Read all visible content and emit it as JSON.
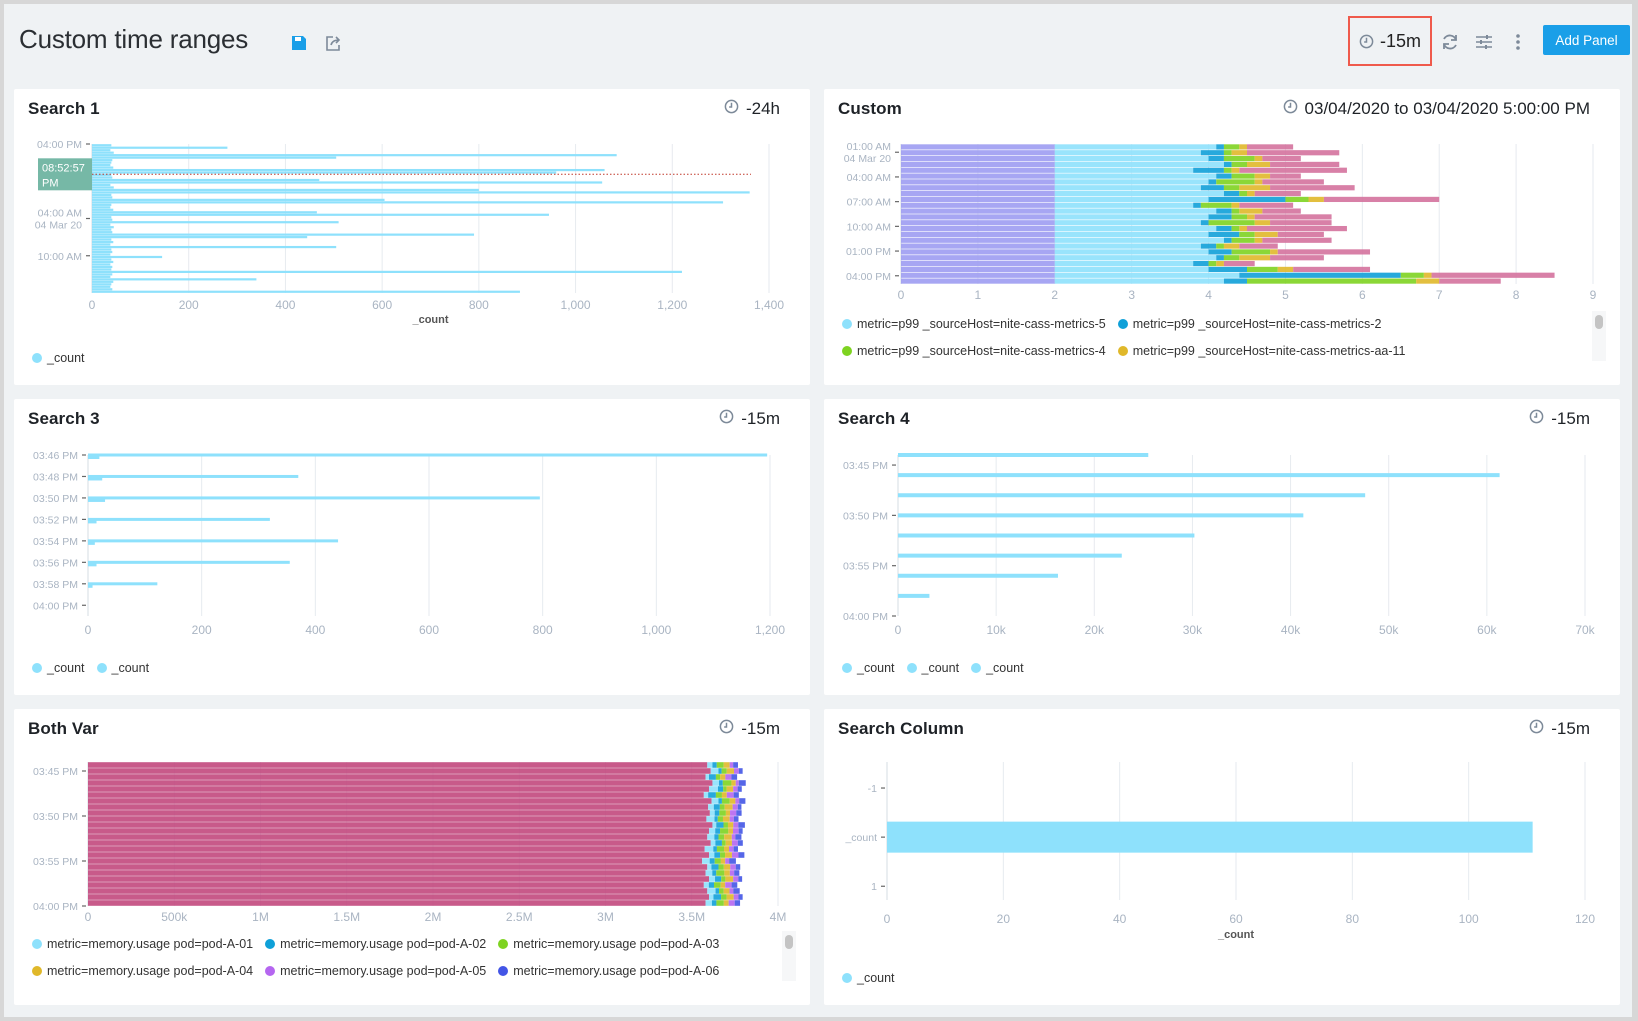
{
  "header": {
    "title": "Custom time ranges",
    "icons": [
      "save-icon",
      "share-icon",
      "clock-icon",
      "refresh-icon",
      "settings-sliders-icon",
      "more-vertical-icon"
    ],
    "time_range": "-15m",
    "add_panel_label": "Add Panel",
    "accent": "#1a9fe8",
    "highlight_border": "#ef5a4c"
  },
  "panels": {
    "search1": {
      "title": "Search 1",
      "range": "-24h"
    },
    "custom": {
      "title": "Custom",
      "range": "03/04/2020 to 03/04/2020 5:00:00 PM"
    },
    "search3": {
      "title": "Search 3",
      "range": "-15m"
    },
    "search4": {
      "title": "Search 4",
      "range": "-15m"
    },
    "bothvar": {
      "title": "Both Var",
      "range": "-15m"
    },
    "searchcol": {
      "title": "Search Column",
      "range": "-15m"
    }
  },
  "chart_data": [
    {
      "id": "search1",
      "type": "bar",
      "orientation": "horizontal",
      "grid": true,
      "xlabel": "_count",
      "xlim": [
        0,
        1400
      ],
      "xticks": [
        0,
        200,
        400,
        600,
        800,
        1000,
        1200,
        1400
      ],
      "xtick_labels": [
        "0",
        "200",
        "400",
        "600",
        "800",
        "1,000",
        "1,200",
        "1,400"
      ],
      "ylim": [
        "04:00 PM",
        "04:00 PM"
      ],
      "yticks": [
        {
          "time": "04:00 PM",
          "label": "04:00 PM"
        },
        {
          "time": "04:00 AM",
          "label": "04:00 AM",
          "sublabel": "04 Mar 20"
        },
        {
          "time": "10:00 AM",
          "label": "10:00 AM"
        }
      ],
      "crosshair": {
        "time": "08:52:57 PM",
        "label": "08:52:57 PM"
      },
      "legend": [
        {
          "name": "_count",
          "color": "#8ee1fc"
        }
      ],
      "series": [
        {
          "name": "_count",
          "color": "#8ee1fc",
          "values": [
            40,
            280,
            38,
            45,
            1085,
            505,
            42,
            40,
            38,
            44,
            1060,
            960,
            40,
            42,
            470,
            1055,
            38,
            45,
            800,
            1360,
            40,
            42,
            605,
            1305,
            40,
            38,
            44,
            465,
            945,
            40,
            42,
            510,
            38,
            45,
            40,
            42,
            790,
            445,
            40,
            44,
            38,
            505,
            40,
            42,
            38,
            145,
            40,
            44,
            38,
            42,
            40,
            1220,
            42,
            38,
            340,
            44,
            40,
            38,
            42,
            885
          ]
        }
      ]
    },
    {
      "id": "custom",
      "type": "bar",
      "orientation": "horizontal",
      "stacked": true,
      "grid": true,
      "xlim": [
        0,
        9
      ],
      "xticks": [
        0,
        1,
        2,
        3,
        4,
        5,
        6,
        7,
        8,
        9
      ],
      "xtick_labels": [
        "0",
        "1",
        "2",
        "3",
        "4",
        "5",
        "6",
        "7",
        "8",
        "9"
      ],
      "ylim": [
        "12:00 AM",
        "05:00 PM"
      ],
      "yticks": [
        {
          "time": "01:00 AM",
          "label": "01:00 AM",
          "sublabel": "04 Mar 20"
        },
        {
          "time": "04:00 AM",
          "label": "04:00 AM"
        },
        {
          "time": "07:00 AM",
          "label": "07:00 AM"
        },
        {
          "time": "10:00 AM",
          "label": "10:00 AM"
        },
        {
          "time": "01:00 PM",
          "label": "01:00 PM"
        },
        {
          "time": "04:00 PM",
          "label": "04:00 PM"
        }
      ],
      "legend": [
        {
          "name": "metric=p99 _sourceHost=nite-cass-metrics-5",
          "color": "#8ee1fc"
        },
        {
          "name": "metric=p99 _sourceHost=nite-cass-metrics-2",
          "color": "#0fa0d8"
        },
        {
          "name": "metric=p99 _sourceHost=nite-cass-metrics-4",
          "color": "#7ed321"
        },
        {
          "name": "metric=p99 _sourceHost=nite-cass-metrics-aa-11",
          "color": "#e0b82a"
        }
      ],
      "series": [
        {
          "color": "#9d9cf2",
          "values": [
            2,
            2,
            2,
            2,
            2,
            2,
            2,
            2,
            2,
            2,
            2,
            2,
            2,
            2,
            2,
            2,
            2,
            2,
            2,
            2,
            2,
            2,
            2,
            2
          ]
        },
        {
          "name": "metric=p99 _sourceHost=nite-cass-metrics-5",
          "color": "#8ee1fc",
          "values": [
            2.1,
            1.9,
            2.0,
            2.2,
            1.8,
            2.1,
            2.0,
            1.9,
            2.2,
            2.0,
            1.8,
            2.1,
            2.0,
            1.9,
            2.1,
            2.0,
            2.2,
            1.9,
            2.0,
            2.1,
            1.8,
            2.0,
            2.4,
            2.2
          ]
        },
        {
          "name": "metric=p99 _sourceHost=nite-cass-metrics-2",
          "color": "#0fa0d8",
          "values": [
            0.1,
            0.3,
            0.2,
            0.1,
            0.4,
            0.2,
            0.1,
            0.3,
            0.2,
            1.0,
            0.1,
            0.2,
            0.3,
            0.1,
            0.2,
            0.4,
            0.1,
            0.2,
            0.3,
            0.1,
            0.2,
            0.5,
            2.1,
            0.3
          ]
        },
        {
          "name": "metric=p99 _sourceHost=nite-cass-metrics-4",
          "color": "#7ed321",
          "values": [
            0.2,
            0.1,
            0.4,
            0.2,
            0.1,
            0.3,
            0.5,
            0.2,
            0.1,
            0.3,
            0.4,
            0.1,
            0.2,
            0.6,
            0.1,
            0.2,
            0.3,
            0.1,
            0.5,
            0.2,
            0.1,
            0.4,
            0.3,
            2.2
          ]
        },
        {
          "name": "metric=p99 _sourceHost=nite-cass-metrics-aa-11",
          "color": "#e0b82a",
          "values": [
            0.1,
            0.2,
            0.1,
            0.3,
            0.1,
            0.2,
            0.1,
            0.4,
            0.1,
            0.2,
            0.1,
            0.3,
            0.1,
            0.2,
            0.1,
            0.3,
            0.1,
            0.2,
            0.1,
            0.4,
            0.1,
            0.2,
            0.1,
            0.3
          ]
        },
        {
          "color": "#d4729d",
          "values": [
            0.6,
            1.2,
            0.5,
            0.9,
            1.4,
            0.4,
            0.8,
            1.1,
            0.6,
            1.5,
            0.7,
            0.5,
            1.0,
            0.8,
            1.3,
            0.6,
            0.9,
            0.5,
            1.2,
            0.7,
            0.4,
            1.0,
            1.6,
            0.8
          ]
        }
      ]
    },
    {
      "id": "search3",
      "type": "bar",
      "orientation": "horizontal",
      "overlay": true,
      "grid": true,
      "xlim": [
        0,
        1200
      ],
      "xticks": [
        0,
        200,
        400,
        600,
        800,
        1000,
        1200
      ],
      "xtick_labels": [
        "0",
        "200",
        "400",
        "600",
        "800",
        "1,000",
        "1,200"
      ],
      "ylim": [
        "03:46 PM",
        "04:01 PM"
      ],
      "yticks": [
        {
          "time": "03:46 PM",
          "label": "03:46 PM"
        },
        {
          "time": "03:48 PM",
          "label": "03:48 PM"
        },
        {
          "time": "03:50 PM",
          "label": "03:50 PM"
        },
        {
          "time": "03:52 PM",
          "label": "03:52 PM"
        },
        {
          "time": "03:54 PM",
          "label": "03:54 PM"
        },
        {
          "time": "03:56 PM",
          "label": "03:56 PM"
        },
        {
          "time": "03:58 PM",
          "label": "03:58 PM"
        },
        {
          "time": "04:00 PM",
          "label": "04:00 PM"
        }
      ],
      "legend": [
        {
          "name": "_count",
          "color": "#8ee1fc"
        },
        {
          "name": "_count",
          "color": "#8ee1fc"
        }
      ],
      "series": [
        {
          "name": "_count",
          "color": "#8ee1fc",
          "times": [
            "03:46 PM",
            "03:48 PM",
            "03:50 PM",
            "03:52 PM",
            "03:54 PM",
            "03:56 PM",
            "03:58 PM"
          ],
          "values": [
            1195,
            370,
            795,
            320,
            440,
            355,
            122
          ]
        },
        {
          "name": "_count",
          "color": "#8ee1fc",
          "times": [
            "03:46 PM",
            "03:48 PM",
            "03:50 PM",
            "03:52 PM",
            "03:54 PM",
            "03:56 PM",
            "03:58 PM"
          ],
          "values": [
            20,
            25,
            30,
            15,
            12,
            15,
            8
          ]
        }
      ]
    },
    {
      "id": "search4",
      "type": "bar",
      "orientation": "horizontal",
      "grid": true,
      "xlim": [
        0,
        70000
      ],
      "xticks": [
        0,
        10000,
        20000,
        30000,
        40000,
        50000,
        60000,
        70000
      ],
      "xtick_labels": [
        "0",
        "10k",
        "20k",
        "30k",
        "40k",
        "50k",
        "60k",
        "70k"
      ],
      "ylim": [
        "03:44 PM",
        "04:00 PM"
      ],
      "yticks": [
        {
          "time": "03:45 PM",
          "label": "03:45 PM"
        },
        {
          "time": "03:50 PM",
          "label": "03:50 PM"
        },
        {
          "time": "03:55 PM",
          "label": "03:55 PM"
        },
        {
          "time": "04:00 PM",
          "label": "04:00 PM"
        }
      ],
      "legend": [
        {
          "name": "_count",
          "color": "#8ee1fc"
        },
        {
          "name": "_count",
          "color": "#8ee1fc"
        },
        {
          "name": "_count",
          "color": "#8ee1fc"
        }
      ],
      "series": [
        {
          "name": "_count",
          "color": "#8ee1fc",
          "times": [
            "03:44 PM",
            "03:46 PM",
            "03:48 PM",
            "03:50 PM",
            "03:52 PM",
            "03:54 PM",
            "03:56 PM",
            "03:58 PM"
          ],
          "values": [
            25500,
            61300,
            47600,
            41300,
            30200,
            22800,
            16300,
            3200
          ]
        }
      ]
    },
    {
      "id": "bothvar",
      "type": "bar",
      "orientation": "horizontal",
      "stacked": true,
      "grid": true,
      "xlim": [
        0,
        4000000
      ],
      "xticks": [
        0,
        500000,
        1000000,
        1500000,
        2000000,
        2500000,
        3000000,
        3500000,
        4000000
      ],
      "xtick_labels": [
        "0",
        "500k",
        "1M",
        "1.5M",
        "2M",
        "2.5M",
        "3M",
        "3.5M",
        "4M"
      ],
      "ylim": [
        "03:44 PM",
        "04:00 PM"
      ],
      "yticks": [
        {
          "time": "03:45 PM",
          "label": "03:45 PM"
        },
        {
          "time": "03:50 PM",
          "label": "03:50 PM"
        },
        {
          "time": "03:55 PM",
          "label": "03:55 PM"
        },
        {
          "time": "04:00 PM",
          "label": "04:00 PM"
        }
      ],
      "legend": [
        {
          "name": "metric=memory.usage pod=pod-A-01",
          "color": "#8ee1fc"
        },
        {
          "name": "metric=memory.usage pod=pod-A-02",
          "color": "#0fa0d8"
        },
        {
          "name": "metric=memory.usage pod=pod-A-03",
          "color": "#7ed321"
        },
        {
          "name": "metric=memory.usage pod=pod-A-04",
          "color": "#e0b82a"
        },
        {
          "name": "metric=memory.usage pod=pod-A-05",
          "color": "#b566f0"
        },
        {
          "name": "metric=memory.usage pod=pod-A-06",
          "color": "#4355e6"
        }
      ],
      "series": [
        {
          "color": "#c2487d",
          "values": [
            3590000,
            3610000,
            3580000,
            3620000,
            3600000,
            3570000,
            3615000,
            3595000,
            3605000,
            3585000,
            3620000,
            3600000,
            3590000,
            3610000,
            3575000,
            3600000,
            3560000,
            3590000,
            3580000,
            3600000,
            3570000,
            3590000,
            3600000,
            3580000
          ]
        },
        {
          "name": "metric=memory.usage pod=pod-A-01",
          "color": "#8ee1fc",
          "values": [
            30000,
            45000,
            20000,
            38000,
            52000,
            25000,
            40000,
            33000,
            28000,
            47000,
            22000,
            36000,
            41000,
            27000,
            50000,
            31000,
            44000,
            24000,
            39000,
            35000,
            29000,
            48000,
            26000,
            37000
          ]
        },
        {
          "name": "metric=memory.usage pod=pod-A-02",
          "color": "#0fa0d8",
          "values": [
            25000,
            18000,
            40000,
            22000,
            30000,
            45000,
            20000,
            35000,
            27000,
            19000,
            42000,
            28000,
            24000,
            38000,
            21000,
            33000,
            29000,
            41000,
            23000,
            36000,
            30000,
            20000,
            44000,
            26000
          ]
        },
        {
          "name": "metric=memory.usage pod=pod-A-03",
          "color": "#7ed321",
          "values": [
            40000,
            30000,
            25000,
            50000,
            20000,
            35000,
            45000,
            28000,
            38000,
            30000,
            26000,
            48000,
            33000,
            22000,
            41000,
            29000,
            36000,
            31000,
            47000,
            24000,
            39000,
            27000,
            32000,
            43000
          ]
        },
        {
          "name": "metric=memory.usage pod=pod-A-04",
          "color": "#e0b82a",
          "values": [
            35000,
            42000,
            30000,
            25000,
            38000,
            28000,
            33000,
            46000,
            24000,
            39000,
            31000,
            27000,
            44000,
            36000,
            29000,
            40000,
            25000,
            37000,
            32000,
            45000,
            26000,
            34000,
            41000,
            28000
          ]
        },
        {
          "name": "metric=memory.usage pod=pod-A-05",
          "color": "#b566f0",
          "values": [
            20000,
            28000,
            35000,
            18000,
            26000,
            40000,
            22000,
            30000,
            36000,
            24000,
            29000,
            33000,
            21000,
            34000,
            27000,
            38000,
            23000,
            32000,
            25000,
            30000,
            37000,
            22000,
            28000,
            35000
          ]
        },
        {
          "name": "metric=memory.usage pod=pod-A-06",
          "color": "#4355e6",
          "values": [
            28000,
            22000,
            33000,
            40000,
            24000,
            30000,
            36000,
            21000,
            31000,
            27000,
            38000,
            23000,
            35000,
            29000,
            25000,
            34000,
            39000,
            26000,
            30000,
            22000,
            33000,
            37000,
            24000,
            31000
          ]
        }
      ]
    },
    {
      "id": "searchcol",
      "type": "bar",
      "orientation": "horizontal",
      "grid": true,
      "xlabel": "_count",
      "xlim": [
        0,
        120
      ],
      "xticks": [
        0,
        20,
        40,
        60,
        80,
        100,
        120
      ],
      "xtick_labels": [
        "0",
        "20",
        "40",
        "60",
        "80",
        "100",
        "120"
      ],
      "categories": [
        "-1",
        "_count",
        "1"
      ],
      "legend": [
        {
          "name": "_count",
          "color": "#8ee1fc"
        }
      ],
      "series": [
        {
          "name": "_count",
          "color": "#8ee1fc",
          "values": [
            null,
            111,
            null
          ]
        }
      ]
    }
  ]
}
